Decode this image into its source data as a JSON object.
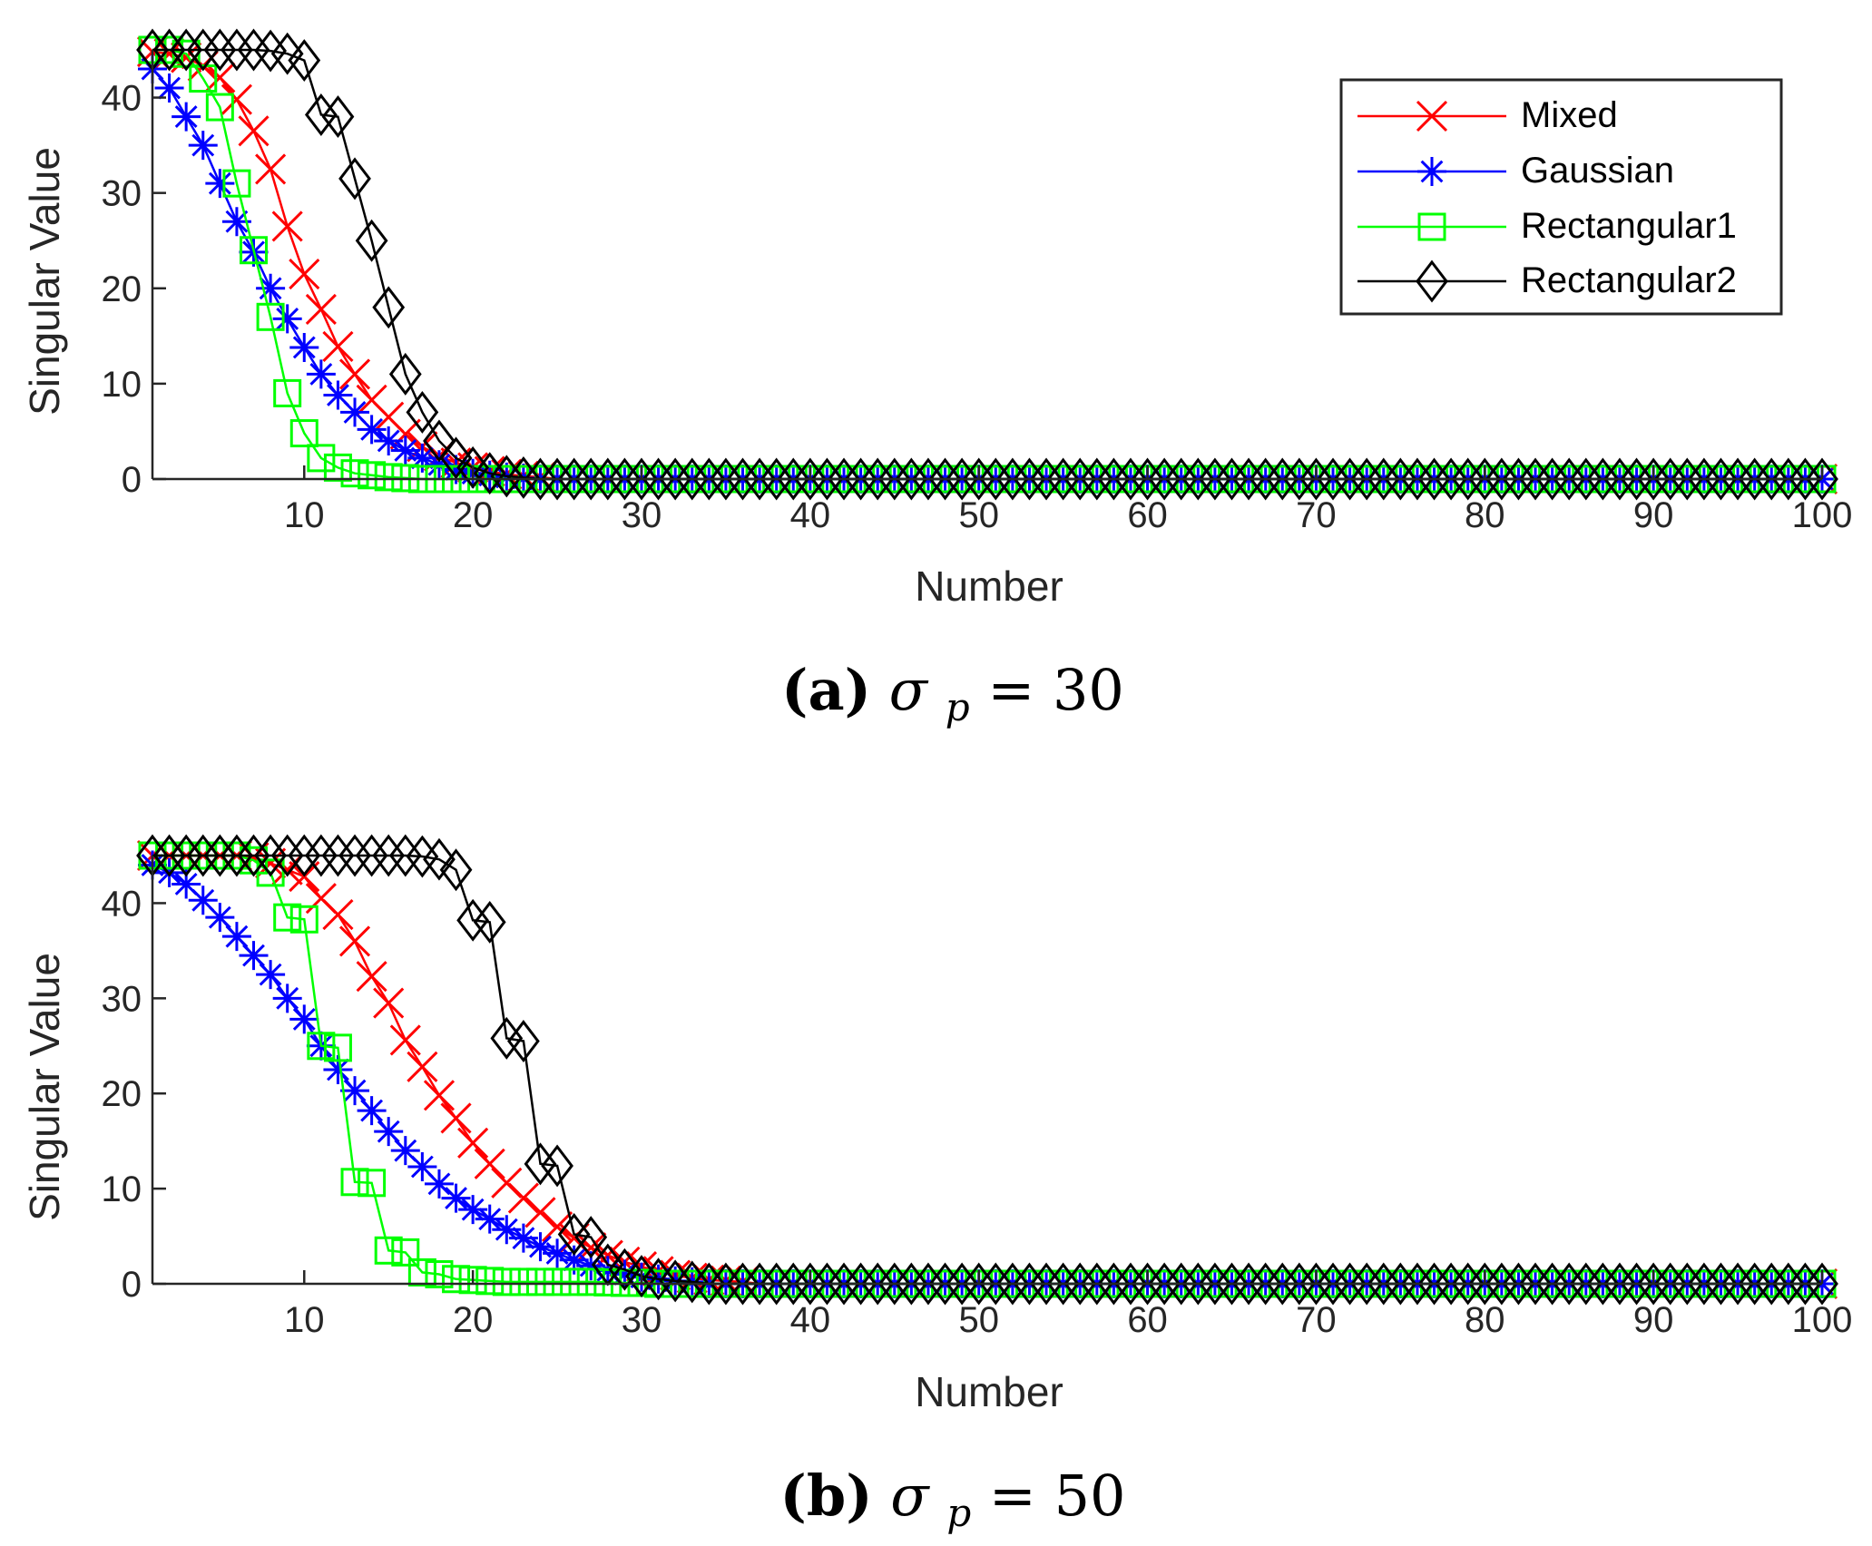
{
  "chart_data": [
    {
      "type": "line",
      "caption_letter": "(a)",
      "caption_symbol": "σ",
      "caption_sub": "p",
      "caption_rest": " = 30",
      "xlabel": "Number",
      "ylabel": "Singular Value",
      "xlim": [
        1,
        100
      ],
      "ylim": [
        0,
        45
      ],
      "xticks": [
        10,
        20,
        30,
        40,
        50,
        60,
        70,
        80,
        90,
        100
      ],
      "yticks": [
        0,
        10,
        20,
        30,
        40
      ],
      "legend_position": "top-right",
      "series": [
        {
          "name": "Mixed",
          "color": "#ff0000",
          "marker": "x",
          "values": [
            44.8,
            44.6,
            44.2,
            43.3,
            42.1,
            39.8,
            36.5,
            32.5,
            26.5,
            21.5,
            17.8,
            13.9,
            11,
            8.3,
            6.5,
            4.7,
            3.4,
            2.4,
            1.7,
            1.2,
            0.8,
            0.5,
            0.3,
            0.2
          ]
        },
        {
          "name": "Gaussian",
          "color": "#0000ff",
          "marker": "asterisk",
          "values": [
            43,
            41,
            38,
            35,
            31,
            27,
            23.8,
            20,
            16.8,
            13.8,
            11,
            8.8,
            7,
            5.2,
            4,
            3,
            2.2,
            1.5,
            1,
            0.6,
            0.4,
            0.2,
            0.1
          ]
        },
        {
          "name": "Rectangular1",
          "color": "#00ff00",
          "marker": "square",
          "values": [
            45,
            45,
            44.6,
            42,
            39,
            31,
            24,
            17,
            9,
            4.8,
            2.2,
            1.2,
            0.6,
            0.4,
            0.2,
            0.1
          ]
        },
        {
          "name": "Rectangular2",
          "color": "#000000",
          "marker": "diamond",
          "values": [
            45,
            45,
            45,
            45,
            45,
            45,
            45,
            44.9,
            44.6,
            43.9,
            38.2,
            38,
            31.5,
            25,
            18,
            11,
            7,
            4,
            2.2,
            1.2,
            0.6,
            0.3,
            0.15
          ]
        }
      ]
    },
    {
      "type": "line",
      "caption_letter": "(b)",
      "caption_symbol": "σ",
      "caption_sub": "p",
      "caption_rest": " = 50",
      "xlabel": "Number",
      "ylabel": "Singular Value",
      "xlim": [
        1,
        100
      ],
      "ylim": [
        0,
        45
      ],
      "xticks": [
        10,
        20,
        30,
        40,
        50,
        60,
        70,
        80,
        90,
        100
      ],
      "yticks": [
        0,
        10,
        20,
        30,
        40
      ],
      "legend_position": "none",
      "series": [
        {
          "name": "Mixed",
          "color": "#ff0000",
          "marker": "x",
          "values": [
            45,
            45,
            45,
            45,
            45,
            45,
            44.8,
            44.2,
            43.5,
            42.8,
            40.5,
            38.8,
            36,
            32.3,
            29.5,
            25.6,
            22.8,
            19.8,
            17.4,
            14.8,
            12.6,
            10.6,
            9,
            7.5,
            6,
            4.8,
            3.8,
            3,
            2.3,
            1.8,
            1.3,
            0.9,
            0.6,
            0.4,
            0.3,
            0.2
          ]
        },
        {
          "name": "Gaussian",
          "color": "#0000ff",
          "marker": "asterisk",
          "values": [
            44,
            43.2,
            42,
            40.3,
            38.5,
            36.5,
            34.5,
            32.5,
            30,
            27.8,
            25,
            22.5,
            20.3,
            18.2,
            16,
            14,
            12.3,
            10.5,
            9,
            7.8,
            6.8,
            5.7,
            4.8,
            3.9,
            3.2,
            2.5,
            1.9,
            1.4,
            1,
            0.7,
            0.5,
            0.3,
            0.2
          ]
        },
        {
          "name": "Rectangular1",
          "color": "#00ff00",
          "marker": "square",
          "values": [
            45,
            45,
            45,
            45,
            45,
            45,
            44.5,
            43.2,
            38.5,
            38.3,
            25,
            24.8,
            10.7,
            10.6,
            3.5,
            3.3,
            1.2,
            1,
            0.5,
            0.4,
            0.3,
            0.2,
            0.2,
            0.2,
            0.2,
            0.2,
            0.2,
            0.15,
            0.1,
            0.1
          ]
        },
        {
          "name": "Rectangular2",
          "color": "#000000",
          "marker": "diamond",
          "values": [
            45,
            45,
            45,
            45,
            45,
            45,
            45,
            45,
            45,
            45,
            45,
            45,
            45,
            45,
            45,
            45,
            44.9,
            44.6,
            43.5,
            38.2,
            38,
            25.8,
            25.5,
            12.6,
            12.4,
            5.2,
            4.9,
            2,
            1.5,
            0.8,
            0.5,
            0.3,
            0.2
          ]
        }
      ]
    }
  ]
}
